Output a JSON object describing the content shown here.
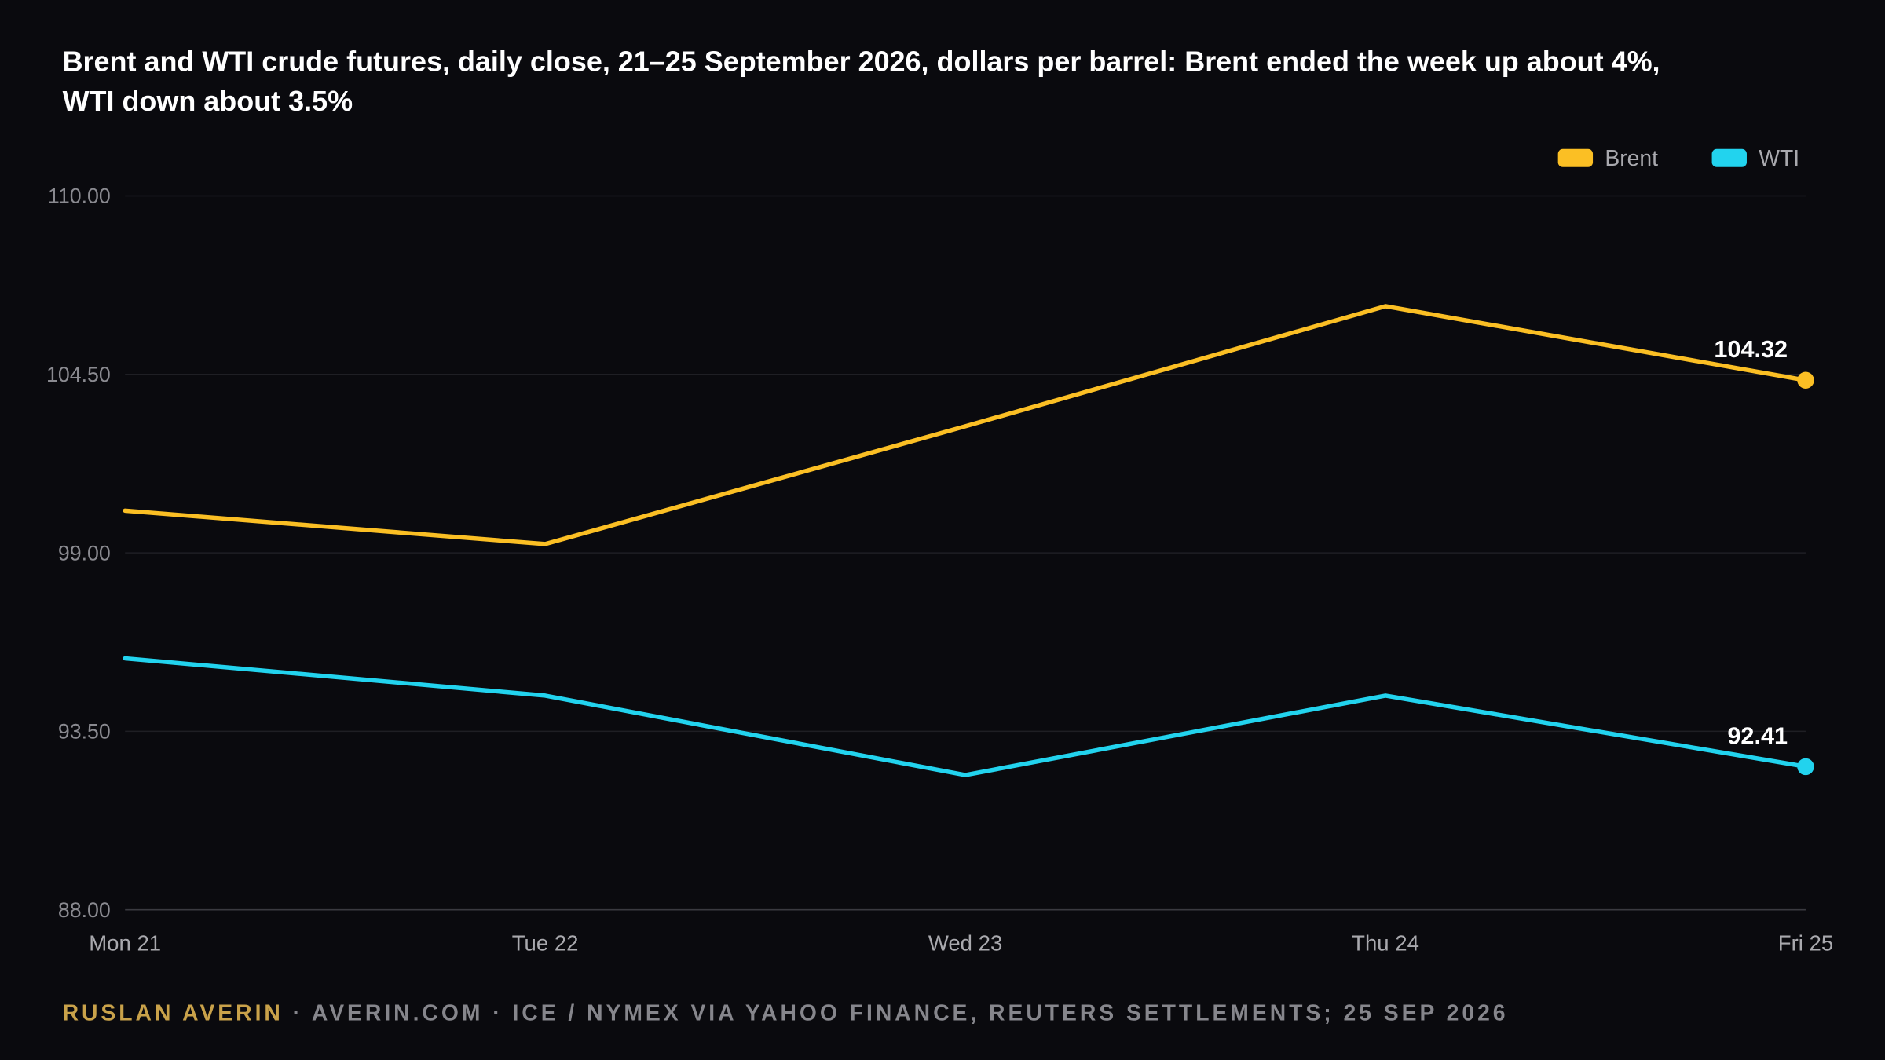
{
  "chart_data": {
    "type": "line",
    "title": "Brent and WTI crude futures, daily close, 21–25 September 2026, dollars per barrel: Brent ended the week up about 4%,",
    "title_line2": "WTI down about 3.5%",
    "xlabel": "",
    "ylabel": "",
    "categories": [
      "Mon 21",
      "Tue 22",
      "Wed 23",
      "Thu 24",
      "Fri 25"
    ],
    "y_ticks": [
      "110.00",
      "104.50",
      "99.00",
      "93.50",
      "88.00"
    ],
    "ylim": [
      88,
      110
    ],
    "grid": true,
    "legend_position": "top-right",
    "series": [
      {
        "name": "Brent",
        "color": "#fbbf24",
        "values": [
          100.3,
          99.27,
          102.9,
          106.6,
          104.32
        ],
        "end_label": "104.32"
      },
      {
        "name": "WTI",
        "color": "#22d3ee",
        "values": [
          95.75,
          94.6,
          92.15,
          94.6,
          92.41
        ],
        "end_label": "92.41"
      }
    ]
  },
  "footer": {
    "author": "RUSLAN AVERIN",
    "source": " · AVERIN.COM · ICE / NYMEX VIA YAHOO FINANCE, REUTERS SETTLEMENTS; 25 SEP 2026"
  },
  "colors": {
    "background": "#0a0a0e",
    "author": "#c9a24a",
    "source": "#86868c",
    "grid": "#1f1f24",
    "axis": "#3a3a40"
  }
}
